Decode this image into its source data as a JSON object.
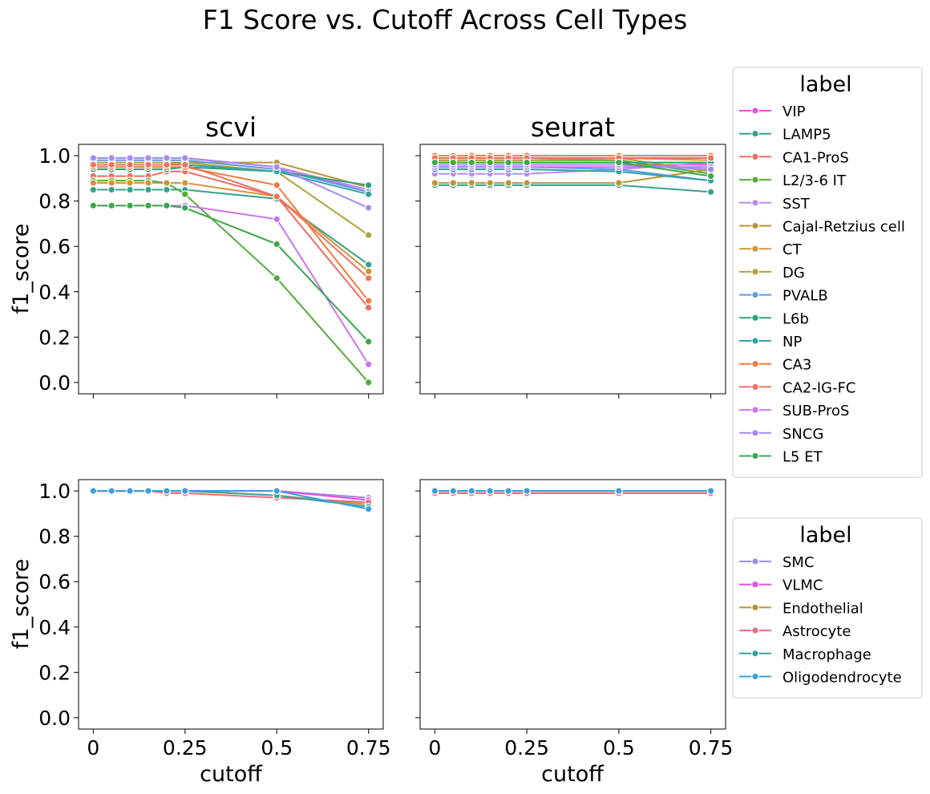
{
  "chart_data": {
    "type": "line",
    "title": "F1 Score vs. Cutoff Across Cell Types",
    "xlabel": "cutoff",
    "ylabel": "f1_score",
    "x": [
      0,
      0.05,
      0.1,
      0.15,
      0.2,
      0.25,
      0.5,
      0.75
    ],
    "xticks": [
      0,
      0.25,
      0.5,
      0.75
    ],
    "xtick_labels": [
      "0",
      "0.25",
      "0.5",
      "0.75"
    ],
    "yticks": [
      0.0,
      0.2,
      0.4,
      0.6,
      0.8,
      1.0
    ],
    "ytick_labels": [
      "0.0",
      "0.2",
      "0.4",
      "0.6",
      "0.8",
      "1.0"
    ],
    "xlim": [
      -0.04,
      0.79
    ],
    "ylim": [
      -0.05,
      1.05
    ],
    "grid": false,
    "legends": [
      {
        "title": "label",
        "placement": "right of top row",
        "entries": [
          {
            "name": "VIP",
            "color": "#e94fe0"
          },
          {
            "name": "LAMP5",
            "color": "#36a18b"
          },
          {
            "name": "CA1-ProS",
            "color": "#ef6a6a"
          },
          {
            "name": "L2/3-6 IT",
            "color": "#52ab3a"
          },
          {
            "name": "SST",
            "color": "#b98bf0"
          },
          {
            "name": "Cajal-Retzius cell",
            "color": "#b8963a"
          },
          {
            "name": "CT",
            "color": "#d1943b"
          },
          {
            "name": "DG",
            "color": "#aea43d"
          },
          {
            "name": "PVALB",
            "color": "#5e9ae8"
          },
          {
            "name": "L6b",
            "color": "#2aa37a"
          },
          {
            "name": "NP",
            "color": "#31a3a3"
          },
          {
            "name": "CA3",
            "color": "#f07b3c"
          },
          {
            "name": "CA2-IG-FC",
            "color": "#ed735f"
          },
          {
            "name": "SUB-ProS",
            "color": "#c775ef"
          },
          {
            "name": "SNCG",
            "color": "#a48bef"
          },
          {
            "name": "L5 ET",
            "color": "#3ba84c"
          }
        ]
      },
      {
        "title": "label",
        "placement": "right of bottom row",
        "entries": [
          {
            "name": "SMC",
            "color": "#9b8fe8"
          },
          {
            "name": "VLMC",
            "color": "#e74be8"
          },
          {
            "name": "Endothelial",
            "color": "#b4963a"
          },
          {
            "name": "Astrocyte",
            "color": "#ee6b80"
          },
          {
            "name": "Macrophage",
            "color": "#3aa3a0"
          },
          {
            "name": "Oligodendrocyte",
            "color": "#3d9fdc"
          }
        ]
      }
    ],
    "panels": [
      {
        "title": "scvi",
        "row": 0,
        "col": 0,
        "series": [
          {
            "name": "VIP",
            "color": "#e94fe0",
            "values": [
              0.99,
              0.99,
              0.99,
              0.99,
              0.99,
              0.99,
              0.95,
              0.84
            ]
          },
          {
            "name": "LAMP5",
            "color": "#36a18b",
            "values": [
              0.85,
              0.85,
              0.85,
              0.85,
              0.85,
              0.85,
              0.81,
              0.52
            ]
          },
          {
            "name": "CA1-ProS",
            "color": "#ef6a6a",
            "values": [
              0.91,
              0.91,
              0.91,
              0.91,
              0.93,
              0.93,
              0.82,
              0.33
            ]
          },
          {
            "name": "L2/3-6 IT",
            "color": "#52ab3a",
            "values": [
              0.89,
              0.89,
              0.89,
              0.89,
              0.88,
              0.83,
              0.46,
              0.0
            ]
          },
          {
            "name": "SST",
            "color": "#b98bf0",
            "values": [
              0.99,
              0.99,
              0.99,
              0.99,
              0.99,
              0.99,
              0.95,
              0.85
            ]
          },
          {
            "name": "Cajal-Retzius cell",
            "color": "#b8963a",
            "values": [
              0.96,
              0.96,
              0.96,
              0.96,
              0.96,
              0.97,
              0.97,
              0.86
            ]
          },
          {
            "name": "CT",
            "color": "#d1943b",
            "values": [
              0.88,
              0.88,
              0.88,
              0.88,
              0.88,
              0.88,
              0.82,
              0.49
            ]
          },
          {
            "name": "DG",
            "color": "#aea43d",
            "values": [
              0.97,
              0.97,
              0.97,
              0.97,
              0.97,
              0.97,
              0.93,
              0.65
            ]
          },
          {
            "name": "PVALB",
            "color": "#5e9ae8",
            "values": [
              0.98,
              0.98,
              0.98,
              0.98,
              0.98,
              0.98,
              0.94,
              0.84
            ]
          },
          {
            "name": "L6b",
            "color": "#2aa37a",
            "values": [
              0.94,
              0.94,
              0.94,
              0.94,
              0.94,
              0.95,
              0.93,
              0.87
            ]
          },
          {
            "name": "NP",
            "color": "#31a3a3",
            "values": [
              0.96,
              0.96,
              0.96,
              0.96,
              0.96,
              0.96,
              0.93,
              0.83
            ]
          },
          {
            "name": "CA3",
            "color": "#f07b3c",
            "values": [
              0.95,
              0.95,
              0.95,
              0.95,
              0.95,
              0.95,
              0.87,
              0.36
            ]
          },
          {
            "name": "CA2-IG-FC",
            "color": "#ed735f",
            "values": [
              0.96,
              0.96,
              0.96,
              0.96,
              0.96,
              0.96,
              0.82,
              0.46
            ]
          },
          {
            "name": "SUB-ProS",
            "color": "#c775ef",
            "values": [
              0.78,
              0.78,
              0.78,
              0.78,
              0.78,
              0.78,
              0.72,
              0.08
            ]
          },
          {
            "name": "SNCG",
            "color": "#a48bef",
            "values": [
              0.99,
              0.99,
              0.99,
              0.99,
              0.99,
              0.99,
              0.95,
              0.77
            ]
          },
          {
            "name": "L5 ET",
            "color": "#3ba84c",
            "values": [
              0.78,
              0.78,
              0.78,
              0.78,
              0.78,
              0.77,
              0.61,
              0.18
            ]
          }
        ]
      },
      {
        "title": "seurat",
        "row": 0,
        "col": 1,
        "series": [
          {
            "name": "VIP",
            "color": "#e94fe0",
            "values": [
              0.96,
              0.96,
              0.96,
              0.96,
              0.96,
              0.96,
              0.96,
              0.96
            ]
          },
          {
            "name": "LAMP5",
            "color": "#36a18b",
            "values": [
              0.87,
              0.87,
              0.87,
              0.87,
              0.87,
              0.87,
              0.87,
              0.84
            ]
          },
          {
            "name": "CA1-ProS",
            "color": "#ef6a6a",
            "values": [
              0.99,
              0.99,
              0.99,
              0.99,
              0.99,
              0.99,
              0.99,
              0.99
            ]
          },
          {
            "name": "L2/3-6 IT",
            "color": "#52ab3a",
            "values": [
              0.98,
              0.98,
              0.98,
              0.98,
              0.98,
              0.98,
              0.98,
              0.92
            ]
          },
          {
            "name": "SST",
            "color": "#b98bf0",
            "values": [
              0.92,
              0.92,
              0.92,
              0.92,
              0.92,
              0.92,
              0.94,
              0.97
            ]
          },
          {
            "name": "Cajal-Retzius cell",
            "color": "#b8963a",
            "values": [
              0.88,
              0.88,
              0.88,
              0.88,
              0.88,
              0.88,
              0.88,
              0.94
            ]
          },
          {
            "name": "CT",
            "color": "#d1943b",
            "values": [
              0.99,
              0.99,
              0.99,
              0.99,
              0.99,
              0.99,
              0.99,
              0.98
            ]
          },
          {
            "name": "DG",
            "color": "#aea43d",
            "values": [
              0.98,
              0.98,
              0.98,
              0.98,
              0.98,
              0.98,
              0.99,
              0.93
            ]
          },
          {
            "name": "PVALB",
            "color": "#5e9ae8",
            "values": [
              0.95,
              0.95,
              0.95,
              0.95,
              0.95,
              0.95,
              0.94,
              0.89
            ]
          },
          {
            "name": "L6b",
            "color": "#2aa37a",
            "values": [
              0.97,
              0.97,
              0.97,
              0.97,
              0.97,
              0.97,
              0.97,
              0.97
            ]
          },
          {
            "name": "NP",
            "color": "#31a3a3",
            "values": [
              0.94,
              0.94,
              0.94,
              0.94,
              0.94,
              0.94,
              0.93,
              0.89
            ]
          },
          {
            "name": "CA3",
            "color": "#f07b3c",
            "values": [
              1.0,
              1.0,
              1.0,
              1.0,
              1.0,
              1.0,
              1.0,
              1.0
            ]
          },
          {
            "name": "CA2-IG-FC",
            "color": "#ed735f",
            "values": [
              0.99,
              0.99,
              0.99,
              0.99,
              0.99,
              0.99,
              0.99,
              0.99
            ]
          },
          {
            "name": "SUB-ProS",
            "color": "#c775ef",
            "values": [
              0.95,
              0.95,
              0.95,
              0.95,
              0.95,
              0.95,
              0.95,
              0.95
            ]
          },
          {
            "name": "SNCG",
            "color": "#a48bef",
            "values": [
              0.96,
              0.96,
              0.96,
              0.96,
              0.96,
              0.96,
              0.96,
              0.94
            ]
          },
          {
            "name": "L5 ET",
            "color": "#3ba84c",
            "values": [
              0.97,
              0.97,
              0.97,
              0.97,
              0.97,
              0.97,
              0.97,
              0.91
            ]
          }
        ]
      },
      {
        "title": "",
        "row": 1,
        "col": 0,
        "series": [
          {
            "name": "SMC",
            "color": "#9b8fe8",
            "values": [
              1.0,
              1.0,
              1.0,
              1.0,
              1.0,
              1.0,
              1.0,
              0.97
            ]
          },
          {
            "name": "VLMC",
            "color": "#e74be8",
            "values": [
              1.0,
              1.0,
              1.0,
              1.0,
              1.0,
              1.0,
              1.0,
              0.96
            ]
          },
          {
            "name": "Endothelial",
            "color": "#b4963a",
            "values": [
              1.0,
              1.0,
              1.0,
              1.0,
              1.0,
              1.0,
              0.98,
              0.94
            ]
          },
          {
            "name": "Astrocyte",
            "color": "#ee6b80",
            "values": [
              1.0,
              1.0,
              1.0,
              1.0,
              0.99,
              0.99,
              0.97,
              0.95
            ]
          },
          {
            "name": "Macrophage",
            "color": "#3aa3a0",
            "values": [
              1.0,
              1.0,
              1.0,
              1.0,
              1.0,
              1.0,
              0.98,
              0.93
            ]
          },
          {
            "name": "Oligodendrocyte",
            "color": "#3d9fdc",
            "values": [
              1.0,
              1.0,
              1.0,
              1.0,
              1.0,
              1.0,
              1.0,
              0.92
            ]
          }
        ]
      },
      {
        "title": "",
        "row": 1,
        "col": 1,
        "series": [
          {
            "name": "SMC",
            "color": "#9b8fe8",
            "values": [
              1.0,
              1.0,
              1.0,
              1.0,
              1.0,
              1.0,
              1.0,
              1.0
            ]
          },
          {
            "name": "VLMC",
            "color": "#e74be8",
            "values": [
              1.0,
              1.0,
              1.0,
              1.0,
              1.0,
              1.0,
              1.0,
              1.0
            ]
          },
          {
            "name": "Endothelial",
            "color": "#b4963a",
            "values": [
              1.0,
              1.0,
              1.0,
              1.0,
              1.0,
              1.0,
              1.0,
              1.0
            ]
          },
          {
            "name": "Astrocyte",
            "color": "#ee6b80",
            "values": [
              0.99,
              0.99,
              0.99,
              0.99,
              0.99,
              0.99,
              0.99,
              0.99
            ]
          },
          {
            "name": "Macrophage",
            "color": "#3aa3a0",
            "values": [
              1.0,
              1.0,
              1.0,
              1.0,
              1.0,
              1.0,
              1.0,
              1.0
            ]
          },
          {
            "name": "Oligodendrocyte",
            "color": "#3d9fdc",
            "values": [
              1.0,
              1.0,
              1.0,
              1.0,
              1.0,
              1.0,
              1.0,
              1.0
            ]
          }
        ]
      }
    ]
  }
}
